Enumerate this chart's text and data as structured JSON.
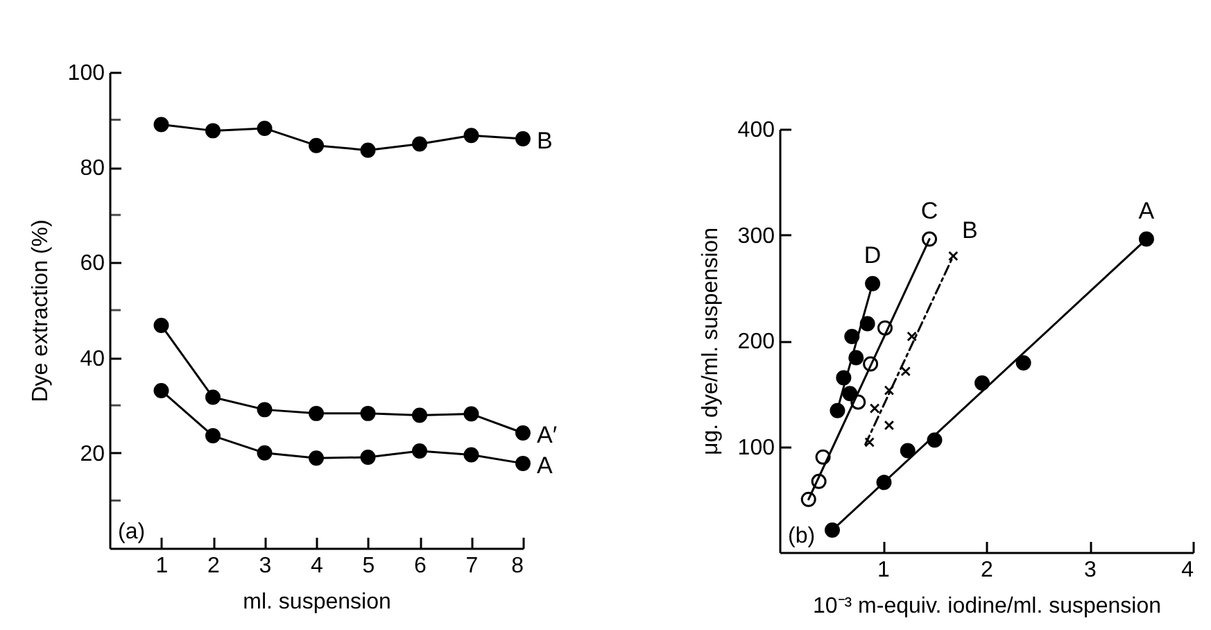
{
  "chart_data": [
    {
      "type": "line",
      "xlabel": "ml. suspension",
      "ylabel": "Dye extraction (%)",
      "annotations": [
        "(a)"
      ],
      "xlim": [
        0,
        8
      ],
      "ylim": [
        0,
        100
      ],
      "xticks": [
        1,
        2,
        3,
        4,
        5,
        6,
        7,
        8
      ],
      "yticks": [
        {
          "value": 10,
          "label": null
        },
        20,
        {
          "value": 30,
          "label": null
        },
        40,
        {
          "value": 50,
          "label": null
        },
        60,
        {
          "value": 70,
          "label": null
        },
        80,
        {
          "value": 90,
          "label": null
        },
        100
      ],
      "grid": false,
      "marker": "circle",
      "line_style": "solid",
      "x": [
        1,
        2,
        3,
        4,
        5,
        6,
        7,
        8
      ],
      "series": [
        {
          "name": "B",
          "color": "#000000",
          "values": [
            89,
            87.7,
            88.2,
            84.6,
            83.6,
            84.9,
            86.7,
            86
          ]
        },
        {
          "name": "A′",
          "color": "#000000",
          "values": [
            46.8,
            31.7,
            29.1,
            28.3,
            28.3,
            27.9,
            28.2,
            24.2
          ]
        },
        {
          "name": "A",
          "color": "#000000",
          "values": [
            33.1,
            23.6,
            20,
            18.9,
            19.1,
            20.4,
            19.6,
            17.8
          ]
        }
      ]
    },
    {
      "type": "scatter",
      "xlabel": "10⁻³ m-equiv. iodine/ml. suspension",
      "ylabel": "μg. dye/ml. suspension",
      "annotations": [
        "(b)"
      ],
      "xlim": [
        0,
        4
      ],
      "ylim": [
        0,
        400
      ],
      "xticks": [
        1,
        2,
        3,
        4
      ],
      "yticks": [
        100,
        200,
        300,
        400
      ],
      "grid": false,
      "series": [
        {
          "name": "A",
          "color": "#000000",
          "marker": "circle",
          "x": [
            0.51,
            1.01,
            1.24,
            1.5,
            1.96,
            2.36,
            3.55
          ],
          "values": [
            21,
            66,
            96,
            106,
            160,
            179,
            296
          ]
        },
        {
          "name": "B",
          "color": "#000000",
          "marker": "cross",
          "x": [
            0.87,
            0.92,
            1.06,
            1.06,
            1.22,
            1.28,
            1.68
          ],
          "values": [
            104,
            136,
            120,
            153,
            171,
            204,
            280
          ]
        },
        {
          "name": "C",
          "color": "#ffffff",
          "marker": "circle",
          "x": [
            0.28,
            0.38,
            0.42,
            0.76,
            0.88,
            1.02,
            1.45
          ],
          "values": [
            50,
            67,
            90,
            142,
            178,
            212,
            296
          ]
        },
        {
          "name": "D",
          "color": "#000000",
          "marker": "circle",
          "x": [
            0.56,
            0.62,
            0.68,
            0.7,
            0.74,
            0.85,
            0.9
          ],
          "values": [
            134,
            165,
            150,
            204,
            184,
            216,
            254
          ]
        },
        {
          "type": "line",
          "color": "#000000",
          "marker": "none",
          "line_style": "solid",
          "x": [
            0.5,
            3.55
          ],
          "values": [
            20,
            296
          ]
        },
        {
          "type": "line",
          "color": "#000000",
          "marker": "none",
          "line_style": "dashed",
          "x": [
            0.83,
            1.68
          ],
          "values": [
            102,
            280
          ]
        },
        {
          "type": "line",
          "color": "#000000",
          "marker": "none",
          "line_style": "solid",
          "x": [
            0.28,
            1.45
          ],
          "values": [
            50,
            296
          ]
        },
        {
          "type": "line",
          "color": "#000000",
          "marker": "none",
          "line_style": "solid",
          "x": [
            0.56,
            0.9
          ],
          "values": [
            135,
            254
          ]
        }
      ]
    }
  ]
}
